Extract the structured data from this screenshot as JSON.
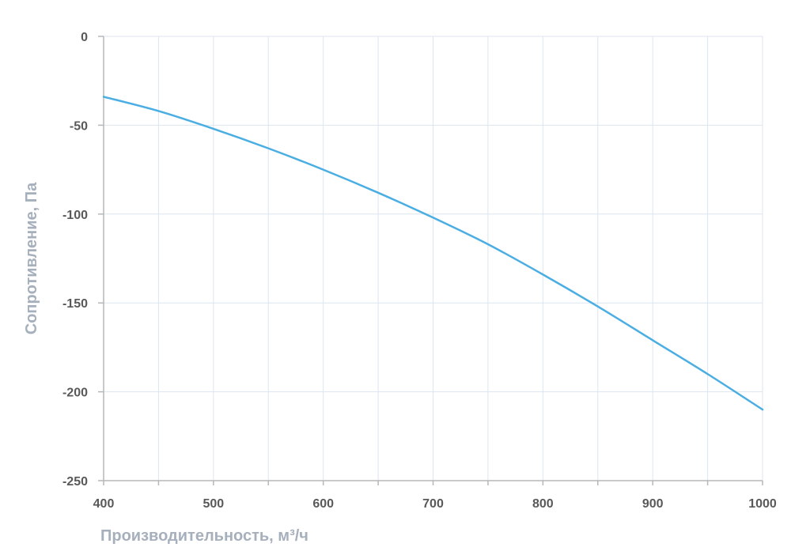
{
  "chart_data": {
    "type": "line",
    "xlabel": "Производительность, м³/ч",
    "ylabel": "Сопротивление, Па",
    "xlim": [
      400,
      1000
    ],
    "ylim": [
      -250,
      0
    ],
    "x_ticks": [
      "400",
      "500",
      "600",
      "700",
      "800",
      "900",
      "1000"
    ],
    "y_ticks": [
      "0",
      "-50",
      "-100",
      "-150",
      "-200",
      "-250"
    ],
    "grid": true,
    "series": [
      {
        "color": "#4aaee3",
        "x": [
          400,
          450,
          500,
          550,
          600,
          650,
          700,
          750,
          800,
          850,
          900,
          950,
          1000
        ],
        "y": [
          -34,
          -42,
          -52,
          -63,
          -75,
          -88,
          -102,
          -117,
          -134,
          -152,
          -171,
          -190,
          -210
        ]
      }
    ]
  },
  "colors": {
    "grid": "#dce6f0",
    "axis": "#b7b7b7",
    "tick_text": "#595959",
    "axis_title": "#a6b0bd",
    "line": "#4aaee3"
  }
}
